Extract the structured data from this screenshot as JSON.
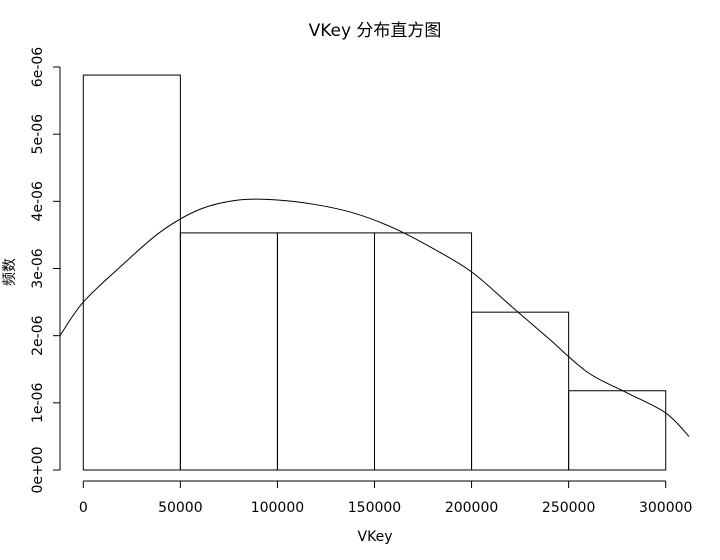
{
  "chart_data": {
    "type": "bar",
    "title": "VKey 分布直方图",
    "xlabel": "VKey",
    "ylabel": "频数",
    "bins": [
      {
        "start": 0,
        "end": 50000,
        "density": 5.88e-06
      },
      {
        "start": 50000,
        "end": 100000,
        "density": 3.53e-06
      },
      {
        "start": 100000,
        "end": 150000,
        "density": 3.53e-06
      },
      {
        "start": 150000,
        "end": 200000,
        "density": 3.53e-06
      },
      {
        "start": 200000,
        "end": 250000,
        "density": 2.35e-06
      },
      {
        "start": 250000,
        "end": 300000,
        "density": 1.18e-06
      }
    ],
    "density_curve": {
      "x": [
        -12000,
        0,
        20000,
        40000,
        60000,
        80000,
        100000,
        120000,
        140000,
        160000,
        180000,
        200000,
        220000,
        240000,
        260000,
        280000,
        300000,
        312000
      ],
      "y": [
        2e-06,
        2.5e-06,
        3.05e-06,
        3.55e-06,
        3.88e-06,
        4.02e-06,
        4.02e-06,
        3.95e-06,
        3.82e-06,
        3.6e-06,
        3.3e-06,
        2.95e-06,
        2.45e-06,
        1.95e-06,
        1.45e-06,
        1.15e-06,
        8.5e-07,
        5e-07
      ]
    },
    "xticks": [
      0,
      50000,
      100000,
      150000,
      200000,
      250000,
      300000
    ],
    "xtick_labels": [
      "0",
      "50000",
      "100000",
      "150000",
      "200000",
      "250000",
      "300000"
    ],
    "yticks": [
      0,
      1e-06,
      2e-06,
      3e-06,
      4e-06,
      5e-06,
      6e-06
    ],
    "ytick_labels": [
      "0e+00",
      "1e-06",
      "2e-06",
      "3e-06",
      "4e-06",
      "5e-06",
      "6e-06"
    ],
    "xlim": [
      -12000,
      312000
    ],
    "ylim": [
      0,
      6e-06
    ],
    "grid": false,
    "legend": false
  }
}
